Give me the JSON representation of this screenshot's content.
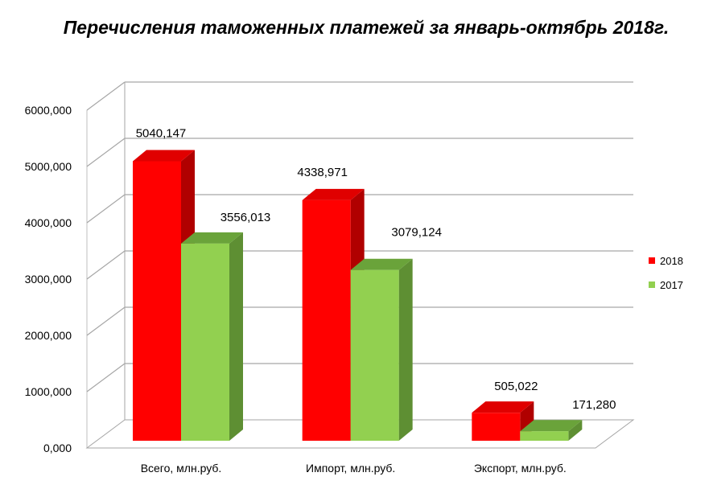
{
  "chart_data": {
    "type": "bar",
    "title": "Перечисления таможенных платежей за январь-октябрь 2018г.",
    "categories": [
      "Всего, млн.руб.",
      "Импорт, млн.руб.",
      "Экспорт, млн.руб."
    ],
    "series": [
      {
        "name": "2018",
        "values": [
          5040.147,
          4338.971,
          505.022
        ],
        "labels": [
          "5040,147",
          "4338,971",
          "505,022"
        ],
        "color": "#ff0000"
      },
      {
        "name": "2017",
        "values": [
          3556.013,
          3079.124,
          171.28
        ],
        "labels": [
          "3556,013",
          "3079,124",
          "171,280"
        ],
        "color": "#92d050"
      }
    ],
    "ylim": [
      0,
      6000
    ],
    "yticks": [
      0,
      1000,
      2000,
      3000,
      4000,
      5000,
      6000
    ],
    "ytick_labels": [
      "0,000",
      "1000,000",
      "2000,000",
      "3000,000",
      "4000,000",
      "5000,000",
      "6000,000"
    ],
    "grid": true,
    "legend_position": "right",
    "style": "3d-clustered-column"
  }
}
